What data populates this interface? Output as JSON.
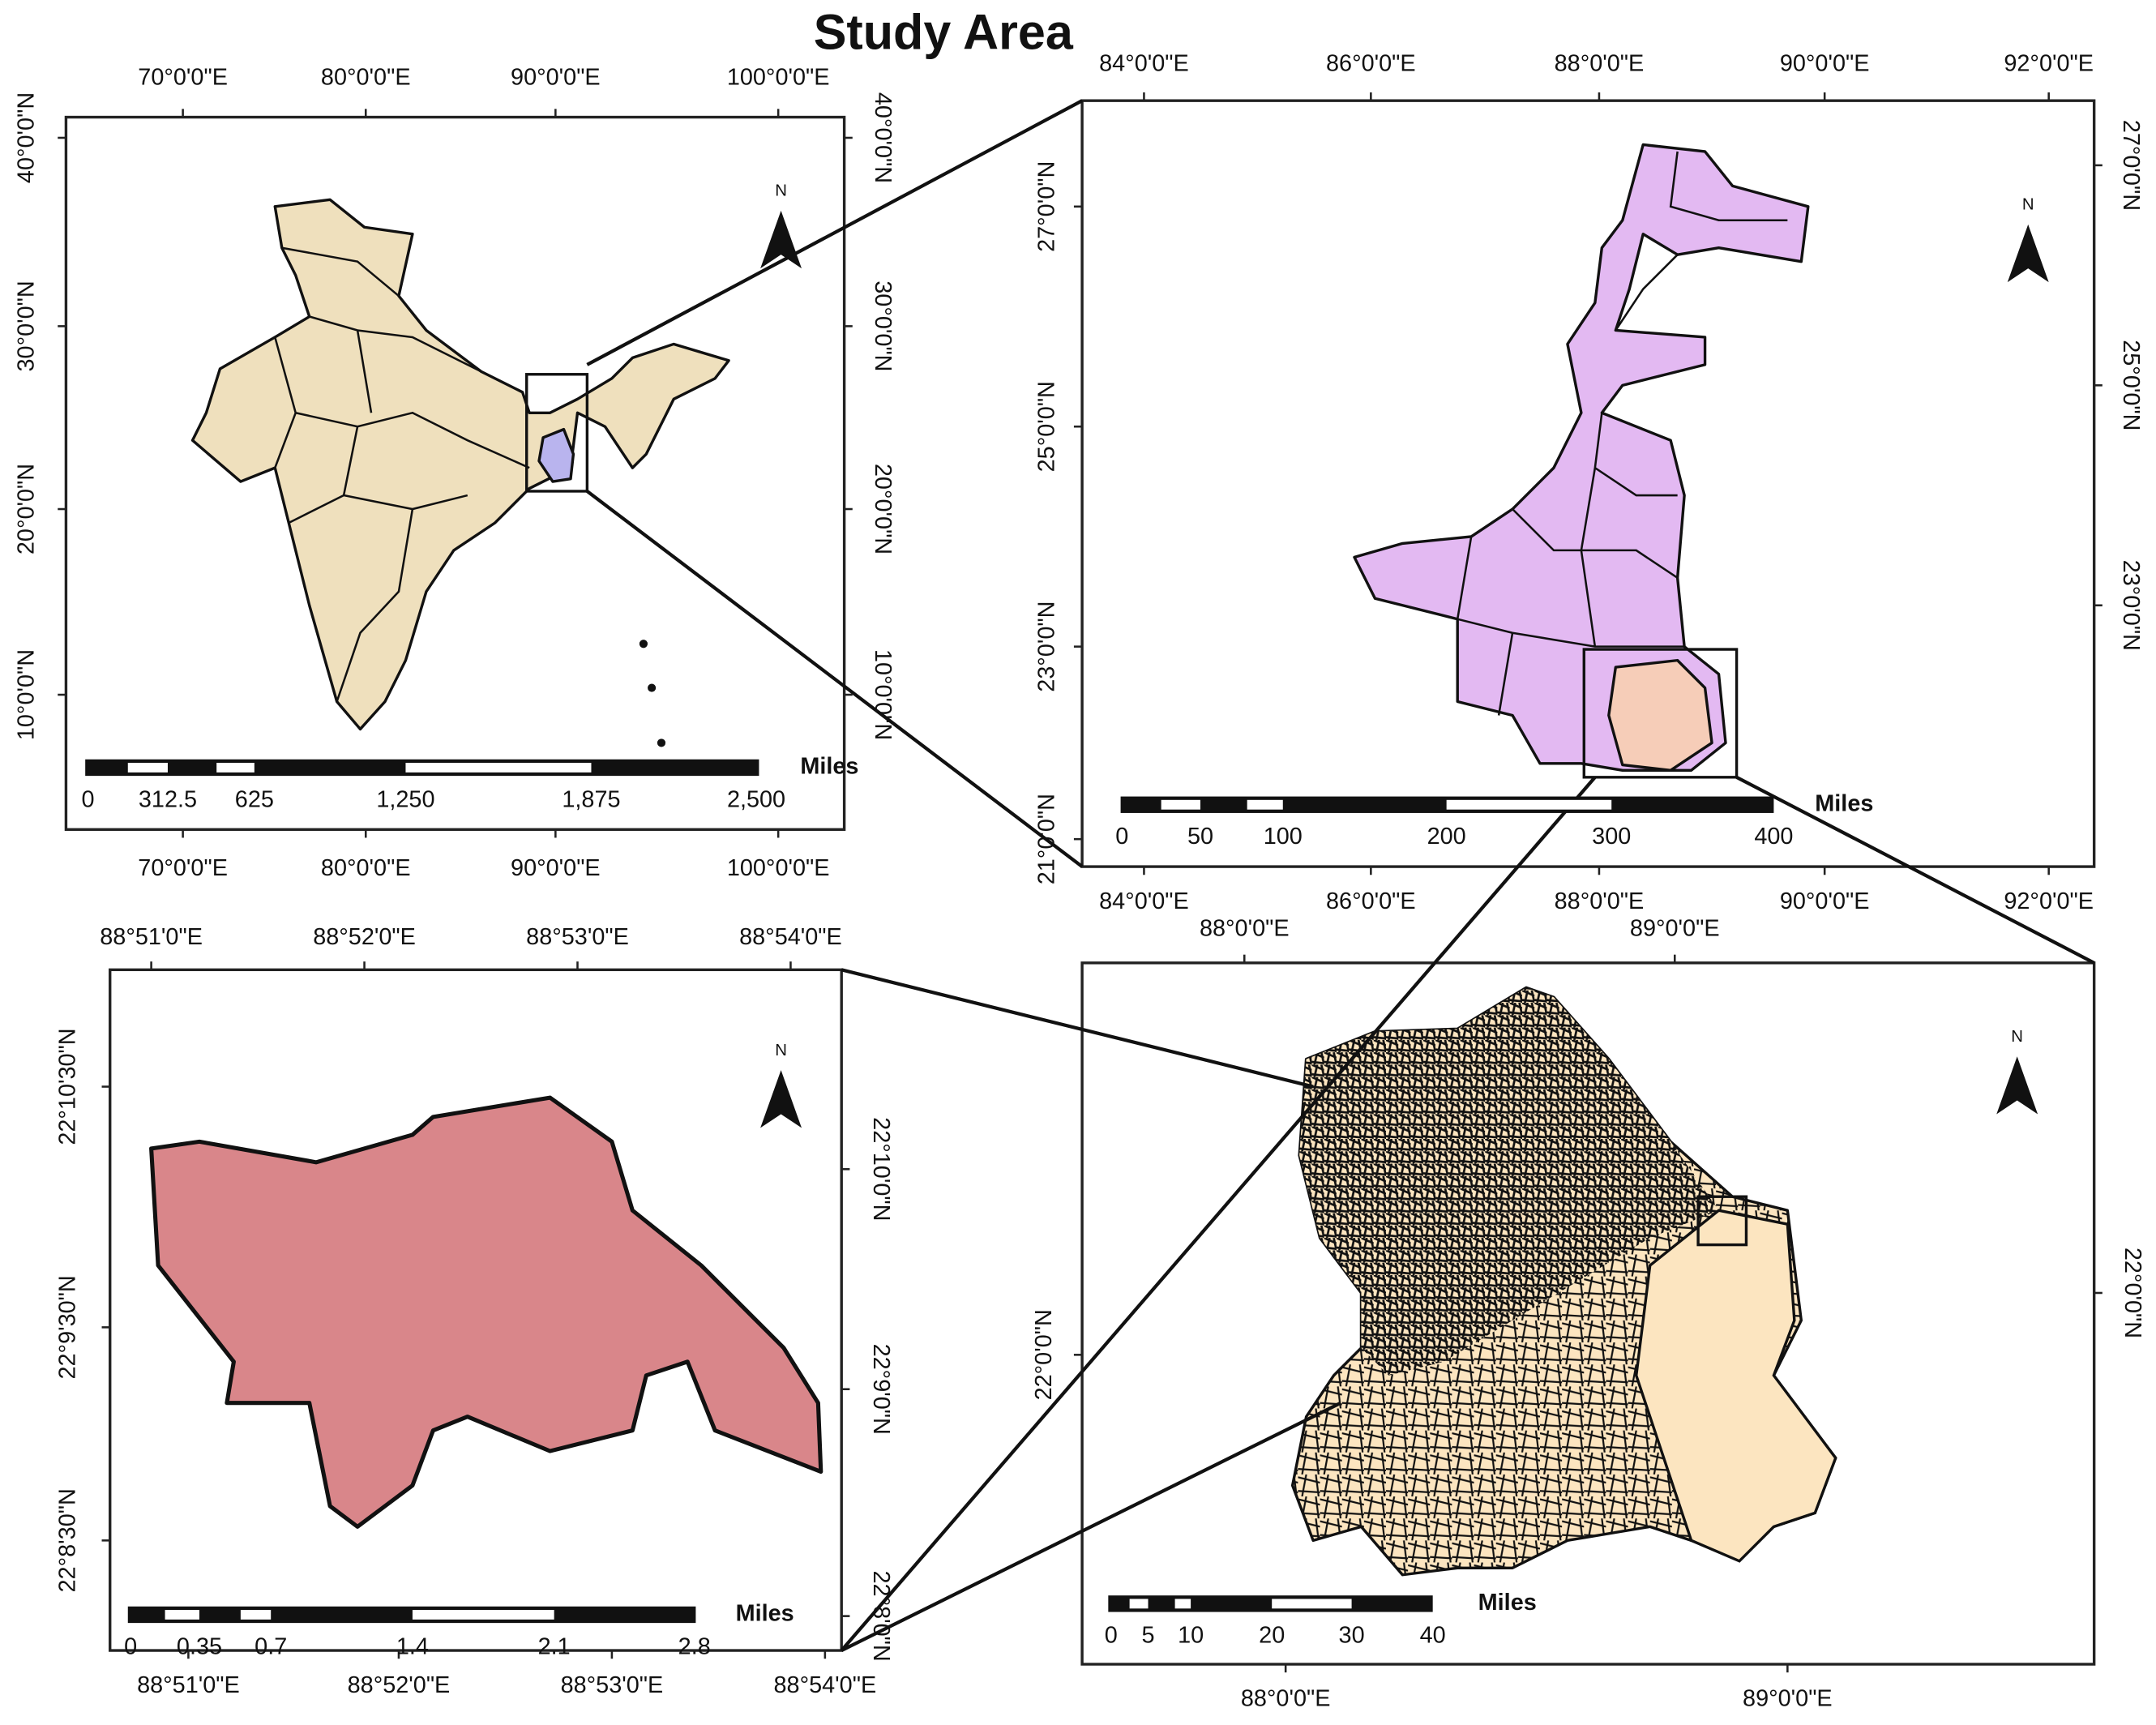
{
  "title": "Study Area",
  "panels": [
    {
      "top": [
        "70°0'0\"E",
        "80°0'0\"E",
        "90°0'0\"E",
        "100°0'0\"E"
      ],
      "bottom": [
        "70°0'0\"E",
        "80°0'0\"E",
        "90°0'0\"E",
        "100°0'0\"E"
      ],
      "left": [
        "40°0'0\"N",
        "30°0'0\"N",
        "20°0'0\"N",
        "10°0'0\"N"
      ],
      "right": [
        "40°0'0\"N",
        "30°0'0\"N",
        "20°0'0\"N",
        "10°0'0\"N"
      ],
      "scale_labels": [
        "0",
        "312.5",
        "625",
        "1,250",
        "1,875",
        "2,500"
      ],
      "scale_unit": "Miles",
      "north": "N"
    },
    {
      "top": [
        "84°0'0\"E",
        "86°0'0\"E",
        "88°0'0\"E",
        "90°0'0\"E",
        "92°0'0\"E"
      ],
      "bottom": [
        "84°0'0\"E",
        "86°0'0\"E",
        "88°0'0\"E",
        "90°0'0\"E",
        "92°0'0\"E"
      ],
      "left": [
        "27°0'0\"N",
        "25°0'0\"N",
        "23°0'0\"N",
        "21°0'0\"N"
      ],
      "right": [
        "27°0'0\"N",
        "25°0'0\"N",
        "23°0'0\"N"
      ],
      "scale_labels": [
        "0",
        "50",
        "100",
        "200",
        "300",
        "400"
      ],
      "scale_unit": "Miles",
      "north": "N"
    },
    {
      "top": [
        "88°51'0\"E",
        "88°52'0\"E",
        "88°53'0\"E",
        "88°54'0\"E"
      ],
      "bottom": [
        "88°51'0\"E",
        "88°52'0\"E",
        "88°53'0\"E",
        "88°54'0\"E"
      ],
      "left": [
        "22°10'30\"N",
        "22°9'30\"N",
        "22°8'30\"N"
      ],
      "right": [
        "22°10'0\"N",
        "22°9'0\"N",
        "22°8'0\"N"
      ],
      "scale_labels": [
        "0",
        "0.35",
        "0.7",
        "1.4",
        "2.1",
        "2.8"
      ],
      "scale_unit": "Miles",
      "north": "N"
    },
    {
      "top": [
        "88°0'0\"E",
        "89°0'0\"E"
      ],
      "bottom": [
        "88°0'0\"E",
        "89°0'0\"E"
      ],
      "left": [
        "22°0'0\"N"
      ],
      "right": [
        "22°0'0\"N"
      ],
      "scale_labels": [
        "0",
        "5",
        "10",
        "20",
        "30",
        "40"
      ],
      "scale_unit": "Miles",
      "north": "N"
    }
  ]
}
